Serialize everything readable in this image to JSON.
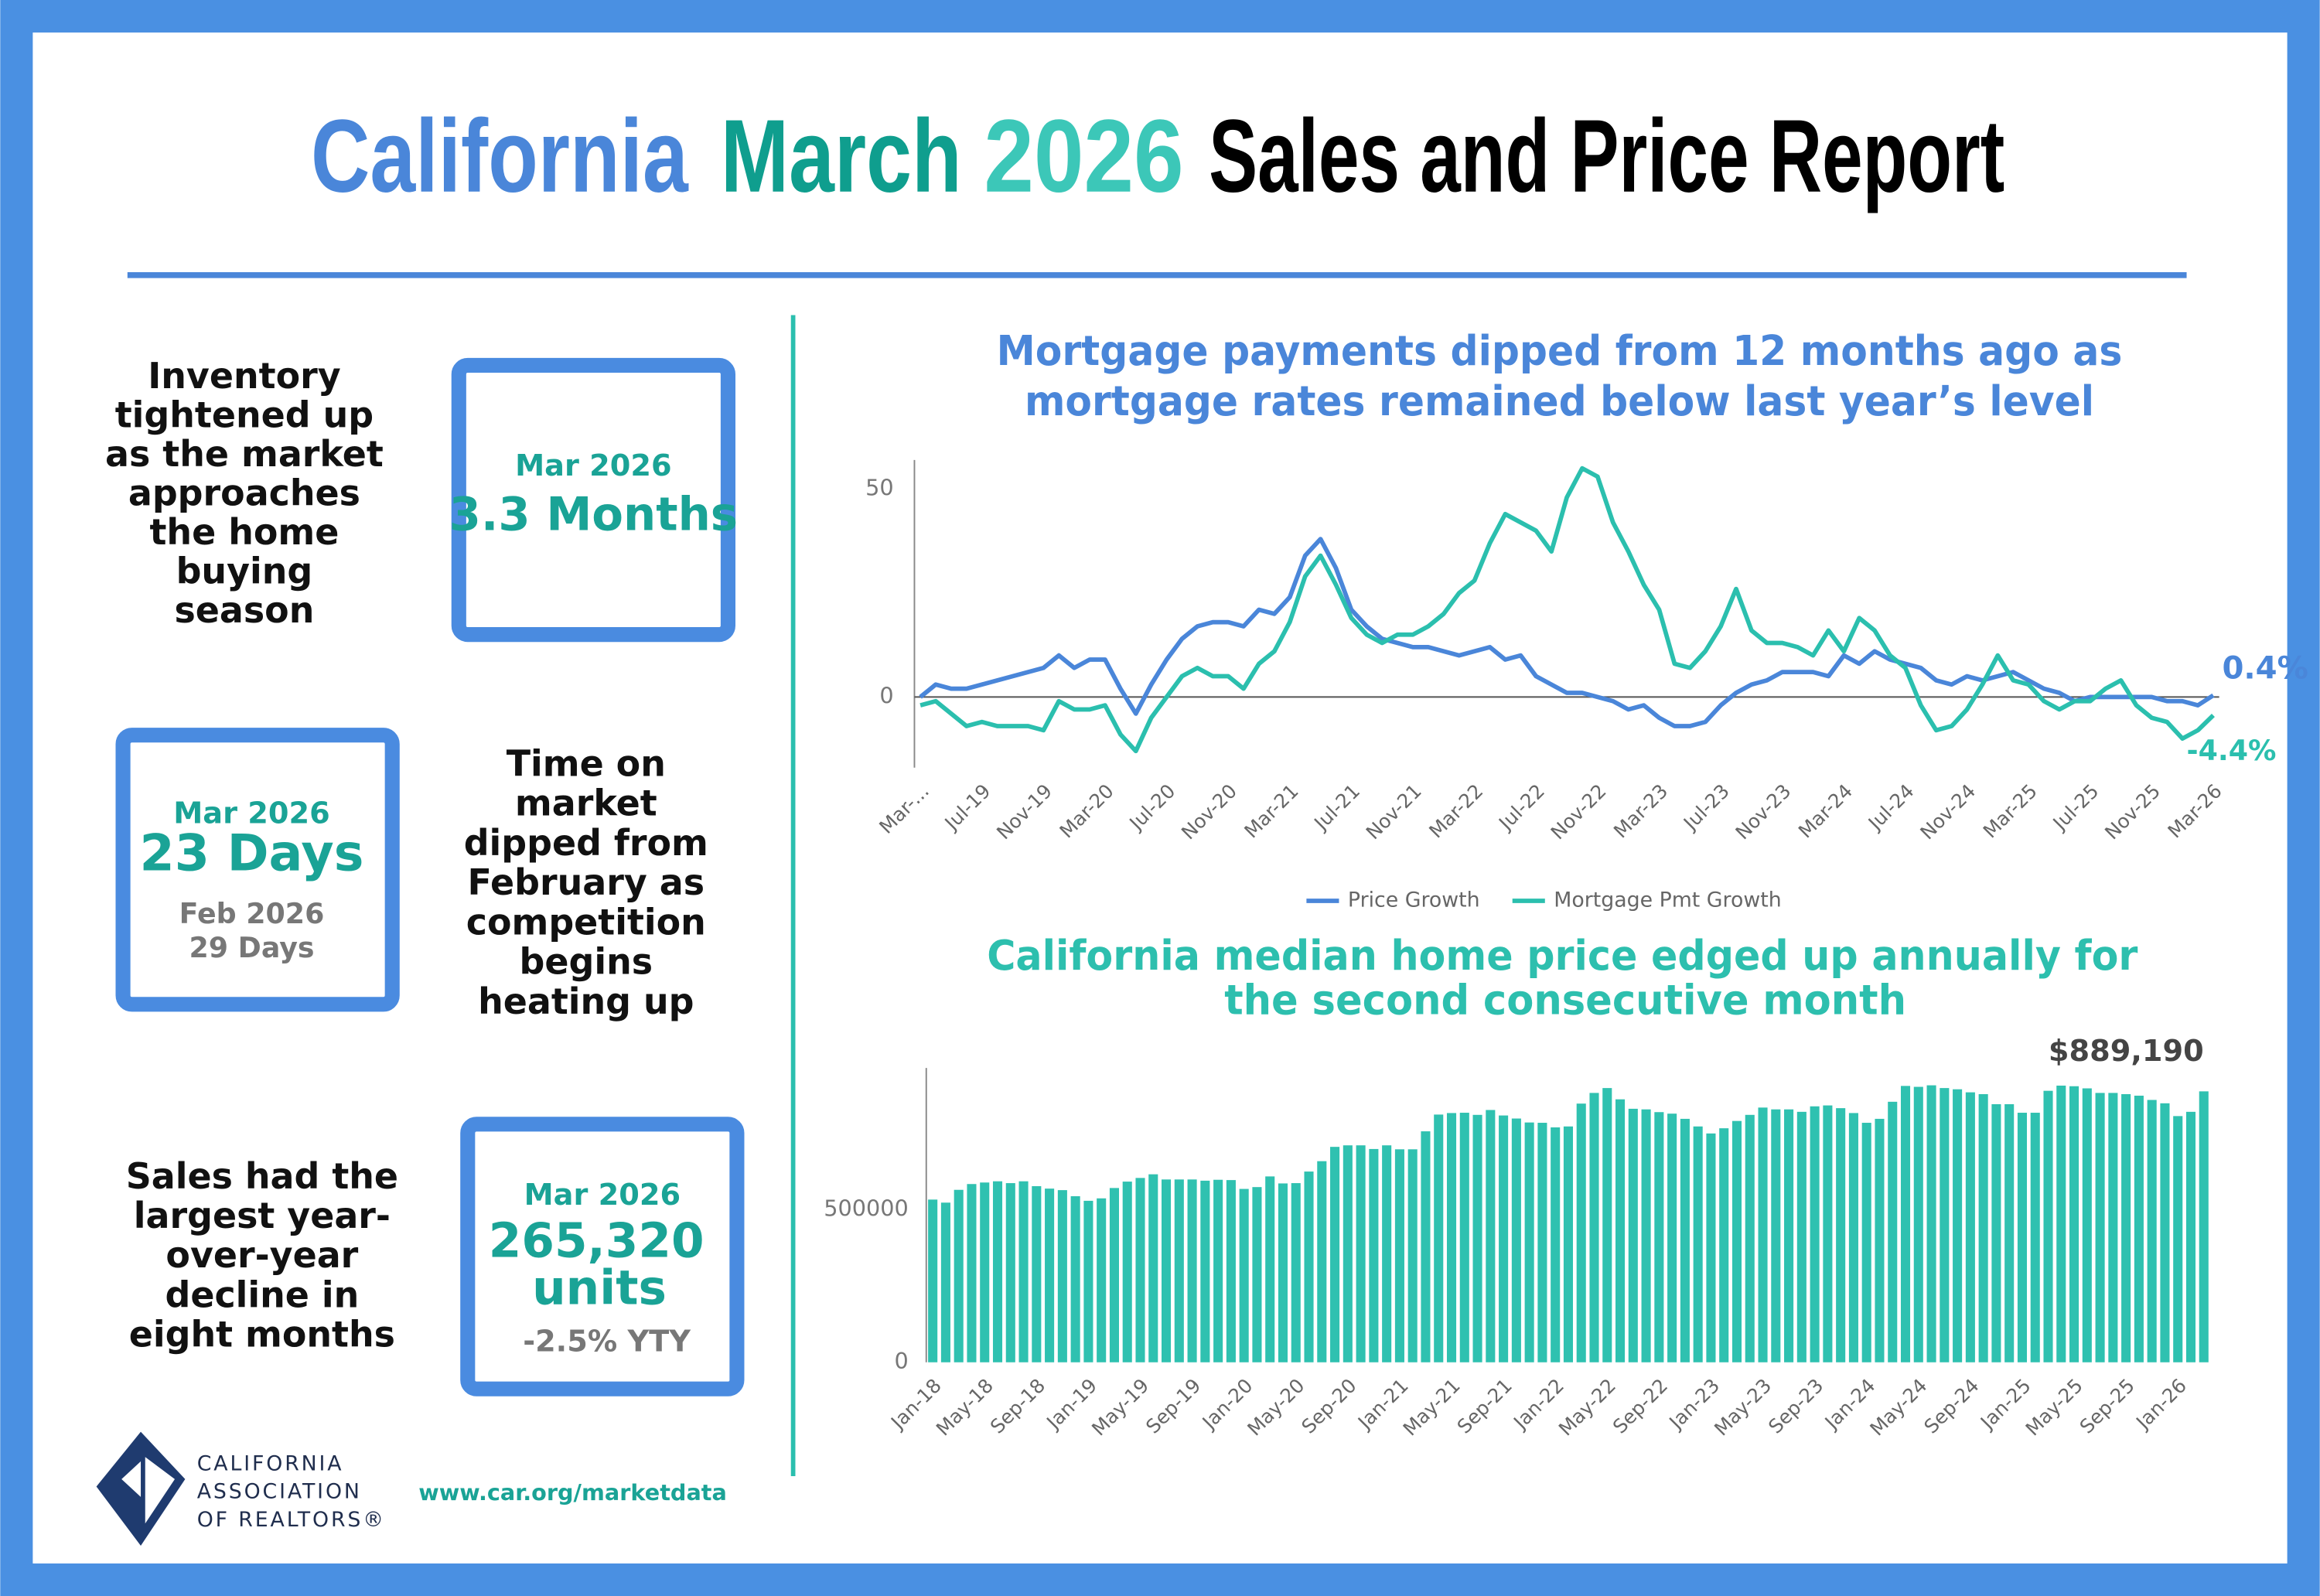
{
  "header": {
    "title": [
      "California",
      "March",
      "2026",
      "Sales and Price Report"
    ]
  },
  "panels": [
    {
      "note": [
        "Inventory",
        "tightened up",
        "as the market",
        "approaches",
        "the home",
        "buying",
        "season"
      ],
      "box": {
        "period": "Mar 2026",
        "value": "3.3 Months"
      }
    },
    {
      "box": {
        "period": "Mar 2026",
        "value": "23 Days",
        "prior_period": "Feb 2026",
        "prior_value": "29 Days"
      },
      "note": [
        "Time on",
        "market",
        "dipped from",
        "February as",
        "competition",
        "begins",
        "heating up"
      ]
    },
    {
      "note": [
        "Sales had the",
        "largest year-",
        "over-year",
        "decline in",
        "eight months"
      ],
      "box": {
        "period": "Mar 2026",
        "value": [
          "265,320",
          "units"
        ],
        "change": "-2.5% YTY"
      }
    }
  ],
  "footer": {
    "logo": [
      "CALIFORNIA",
      "ASSOCIATION",
      "OF REALTORS®"
    ],
    "url": "www.car.org/marketdata"
  },
  "chart_data": [
    {
      "type": "line",
      "title": [
        "Mortgage payments dipped from 12 months ago as",
        "mortgage rates remained below last year’s level"
      ],
      "categories": [
        "Mar-...",
        null,
        null,
        null,
        "Jul-19",
        null,
        null,
        null,
        "Nov-19",
        null,
        null,
        null,
        "Mar-20",
        null,
        null,
        null,
        "Jul-20",
        null,
        null,
        null,
        "Nov-20",
        null,
        null,
        null,
        "Mar-21",
        null,
        null,
        null,
        "Jul-21",
        null,
        null,
        null,
        "Nov-21",
        null,
        null,
        null,
        "Mar-22",
        null,
        null,
        null,
        "Jul-22",
        null,
        null,
        null,
        "Nov-22",
        null,
        null,
        null,
        "Mar-23",
        null,
        null,
        null,
        "Jul-23",
        null,
        null,
        null,
        "Nov-23",
        null,
        null,
        null,
        "Mar-24",
        null,
        null,
        null,
        "Jul-24",
        null,
        null,
        null,
        "Nov-24",
        null,
        null,
        null,
        "Mar-25",
        null,
        null,
        null,
        "Jul-25",
        null,
        null,
        null,
        "Nov-25",
        null,
        null,
        null,
        "Mar-26"
      ],
      "series": [
        {
          "name": "Price Growth",
          "color": "#4a86d9",
          "values": [
            0,
            3,
            2,
            2,
            3,
            4,
            5,
            6,
            7,
            10,
            7,
            9,
            9,
            2,
            -4,
            3,
            9,
            14,
            17,
            18,
            18,
            17,
            21,
            20,
            24,
            34,
            38,
            31,
            21,
            17,
            14,
            13,
            12,
            12,
            11,
            10,
            11,
            12,
            9,
            10,
            5,
            3,
            1,
            1,
            0,
            -1,
            -3,
            -2,
            -5,
            -7,
            -7,
            -6,
            -2,
            1,
            3,
            4,
            6,
            6,
            6,
            5,
            10,
            8,
            11,
            9,
            8,
            7,
            4,
            3,
            5,
            4,
            5,
            6,
            4,
            2,
            1,
            -1,
            0,
            0,
            0,
            0,
            0,
            -1,
            -1,
            -2,
            0.4
          ],
          "value_labels": [
            null,
            null,
            null,
            null,
            null,
            null,
            null,
            null,
            null,
            null,
            null,
            null,
            null,
            null,
            null,
            null,
            null,
            null,
            null,
            null,
            null,
            null,
            null,
            null,
            null,
            null,
            null,
            null,
            null,
            null,
            null,
            null,
            null,
            null,
            null,
            null,
            null,
            null,
            null,
            null,
            null,
            null,
            null,
            null,
            null,
            null,
            null,
            null,
            null,
            null,
            null,
            null,
            null,
            null,
            null,
            null,
            null,
            null,
            null,
            null,
            null,
            null,
            null,
            null,
            null,
            null,
            null,
            null,
            null,
            null,
            null,
            null,
            null,
            null,
            null,
            null,
            null,
            null,
            null,
            null,
            null,
            null,
            null,
            null,
            "0.4%"
          ]
        },
        {
          "name": "Mortgage Pmt Growth",
          "color": "#2bbfae",
          "values": [
            -2,
            -1,
            -4,
            -7,
            -6,
            -7,
            -7,
            -7,
            -8,
            -1,
            -3,
            -3,
            -2,
            -9,
            -13,
            -5,
            0,
            5,
            7,
            5,
            5,
            2,
            8,
            11,
            18,
            29,
            34,
            27,
            19,
            15,
            13,
            15,
            15,
            17,
            20,
            25,
            28,
            37,
            44,
            42,
            40,
            35,
            48,
            55,
            53,
            42,
            35,
            27,
            21,
            8,
            7,
            11,
            17,
            26,
            16,
            13,
            13,
            12,
            10,
            16,
            11,
            19,
            16,
            10,
            7,
            -2,
            -8,
            -7,
            -3,
            3,
            10,
            4,
            3,
            -1,
            -3,
            -1,
            -1,
            2,
            4,
            -2,
            -5,
            -6,
            -10,
            -8,
            -4.4
          ],
          "value_labels": [
            null,
            null,
            null,
            null,
            null,
            null,
            null,
            null,
            null,
            null,
            null,
            null,
            null,
            null,
            null,
            null,
            null,
            null,
            null,
            null,
            null,
            null,
            null,
            null,
            null,
            null,
            null,
            null,
            null,
            null,
            null,
            null,
            null,
            null,
            null,
            null,
            null,
            null,
            null,
            null,
            null,
            null,
            null,
            null,
            null,
            null,
            null,
            null,
            null,
            null,
            null,
            null,
            null,
            null,
            null,
            null,
            null,
            null,
            null,
            null,
            null,
            null,
            null,
            null,
            null,
            null,
            null,
            null,
            null,
            null,
            null,
            null,
            null,
            null,
            null,
            null,
            null,
            null,
            null,
            null,
            null,
            null,
            null,
            null,
            "-4.4%"
          ]
        }
      ],
      "ylim": [
        -17,
        57
      ],
      "yticks": [
        0,
        50
      ],
      "grid": false,
      "legend": "bottom"
    },
    {
      "type": "bar",
      "title": [
        "California median home price edged up annually for",
        "the second consecutive month"
      ],
      "categories": [
        "Jan-18",
        null,
        null,
        null,
        "May-18",
        null,
        null,
        null,
        "Sep-18",
        null,
        null,
        null,
        "Jan-19",
        null,
        null,
        null,
        "May-19",
        null,
        null,
        null,
        "Sep-19",
        null,
        null,
        null,
        "Jan-20",
        null,
        null,
        null,
        "May-20",
        null,
        null,
        null,
        "Sep-20",
        null,
        null,
        null,
        "Jan-21",
        null,
        null,
        null,
        "May-21",
        null,
        null,
        null,
        "Sep-21",
        null,
        null,
        null,
        "Jan-22",
        null,
        null,
        null,
        "May-22",
        null,
        null,
        null,
        "Sep-22",
        null,
        null,
        null,
        "Jan-23",
        null,
        null,
        null,
        "May-23",
        null,
        null,
        null,
        "Sep-23",
        null,
        null,
        null,
        "Jan-24",
        null,
        null,
        null,
        "May-24",
        null,
        null,
        null,
        "Sep-24",
        null,
        null,
        null,
        "Jan-25",
        null,
        null,
        null,
        "May-25",
        null,
        null,
        null,
        "Sep-25",
        null,
        null,
        null,
        "Jan-26",
        null,
        null
      ],
      "values": [
        534000,
        524000,
        566000,
        585000,
        590000,
        594000,
        588000,
        594000,
        578000,
        570000,
        565000,
        545000,
        530000,
        538000,
        572000,
        593000,
        605000,
        617000,
        600000,
        600000,
        600000,
        596000,
        599000,
        598000,
        569000,
        575000,
        610000,
        587000,
        588000,
        626000,
        660000,
        707000,
        712000,
        712000,
        700000,
        712000,
        699000,
        699000,
        758000,
        813000,
        818000,
        819000,
        812000,
        828000,
        810000,
        800000,
        787000,
        786000,
        771000,
        774000,
        849000,
        884000,
        900000,
        863000,
        832000,
        830000,
        821000,
        816000,
        799000,
        774000,
        751000,
        768000,
        792000,
        812000,
        836000,
        830000,
        830000,
        822000,
        840000,
        843000,
        834000,
        818000,
        786000,
        799000,
        855000,
        907000,
        904000,
        909000,
        900000,
        896000,
        886000,
        880000,
        847000,
        847000,
        819000,
        819000,
        891000,
        908000,
        906000,
        899000,
        884000,
        884000,
        880000,
        875000,
        861000,
        850000,
        808000,
        822000,
        889190
      ],
      "value_labels": [
        null,
        null,
        null,
        null,
        null,
        null,
        null,
        null,
        null,
        null,
        null,
        null,
        null,
        null,
        null,
        null,
        null,
        null,
        null,
        null,
        null,
        null,
        null,
        null,
        null,
        null,
        null,
        null,
        null,
        null,
        null,
        null,
        null,
        null,
        null,
        null,
        null,
        null,
        null,
        null,
        null,
        null,
        null,
        null,
        null,
        null,
        null,
        null,
        null,
        null,
        null,
        null,
        null,
        null,
        null,
        null,
        null,
        null,
        null,
        null,
        null,
        null,
        null,
        null,
        null,
        null,
        null,
        null,
        null,
        null,
        null,
        null,
        null,
        null,
        null,
        null,
        null,
        null,
        null,
        null,
        null,
        null,
        null,
        null,
        null,
        null,
        null,
        null,
        null,
        null,
        null,
        null,
        null,
        null,
        null,
        null,
        null,
        null,
        "$889,190"
      ],
      "color": "#2fc1b0",
      "ylim": [
        0,
        966000
      ],
      "yticks": [
        0,
        500000
      ],
      "grid": false
    }
  ]
}
